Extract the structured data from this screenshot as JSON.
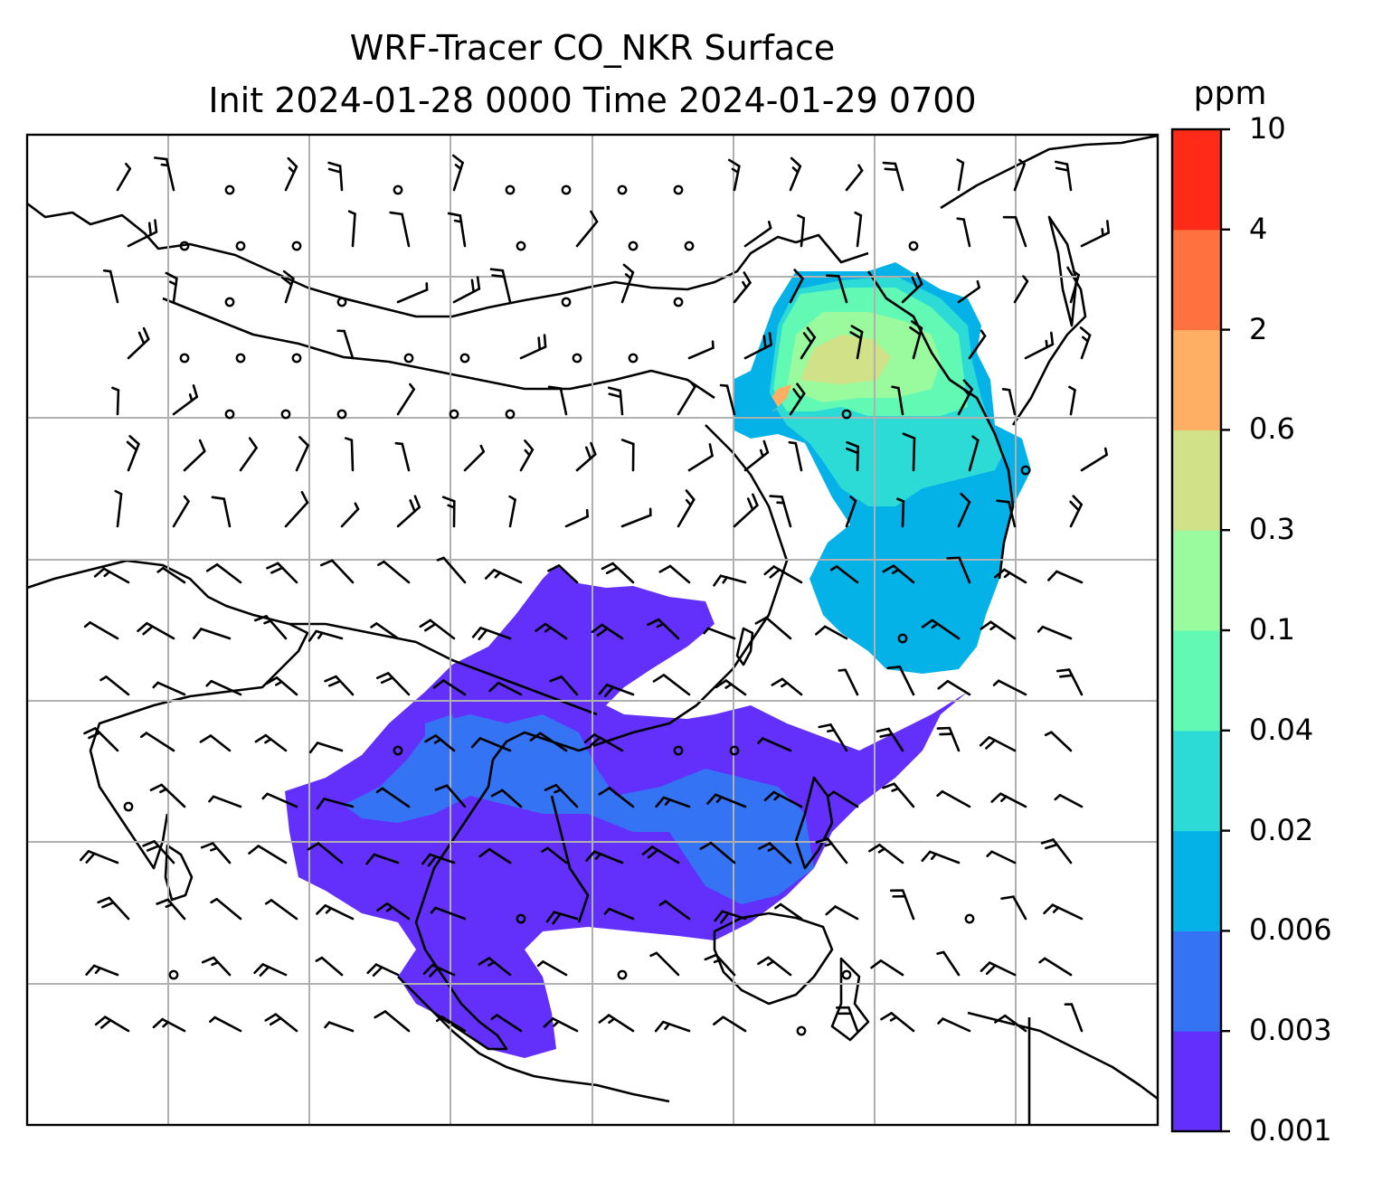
{
  "title_line1": "WRF-Tracer CO_NKR Surface",
  "title_line2": "Init 2024-01-28 0000 Time 2024-01-29 0700",
  "colorbar": {
    "unit": "ppm",
    "levels": [
      "0.001",
      "0.003",
      "0.006",
      "0.02",
      "0.04",
      "0.1",
      "0.3",
      "0.6",
      "2",
      "4",
      "10"
    ],
    "colors": [
      "#6330fb",
      "#3573f5",
      "#05b2e8",
      "#2cdbd5",
      "#62f9b4",
      "#99fb9e",
      "#d0e187",
      "#feaf63",
      "#ff713e",
      "#ff2a17"
    ]
  },
  "map": {
    "field": "CO_NKR tracer concentration",
    "land_outline_color": "#000000",
    "gridline_color": "#b0b0b0"
  }
}
